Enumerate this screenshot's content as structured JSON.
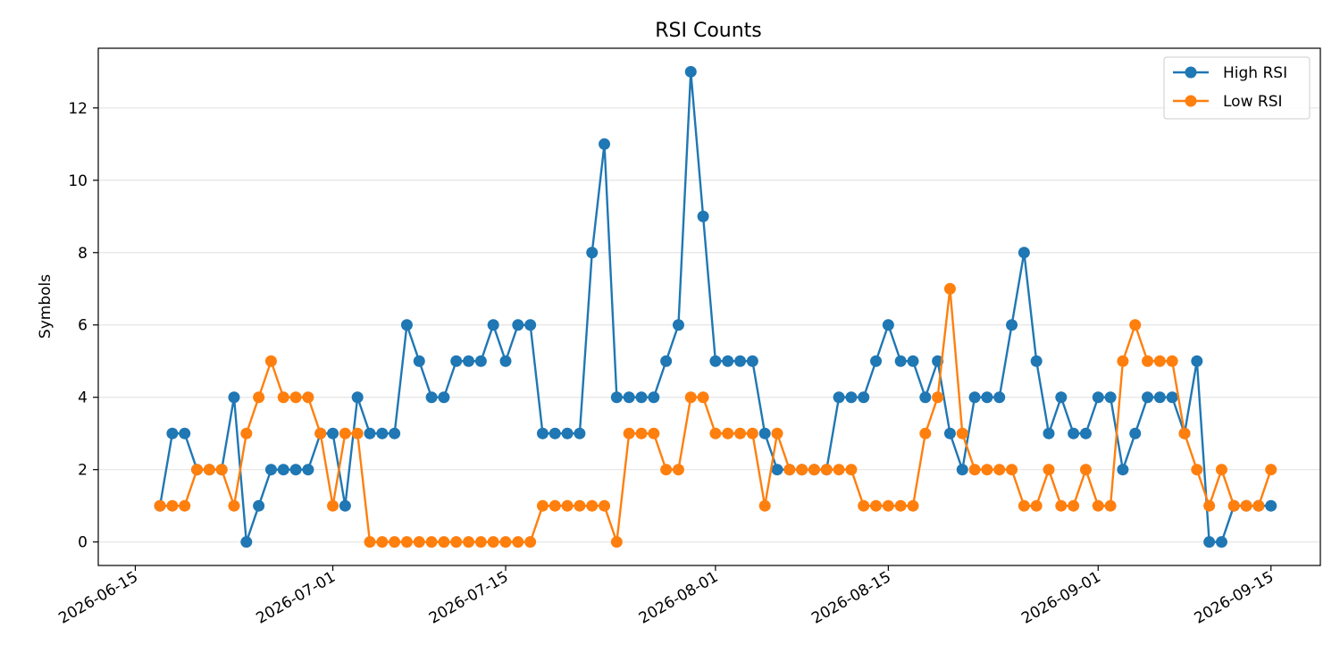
{
  "chart_data": {
    "type": "line",
    "title": "RSI Counts",
    "xlabel": "",
    "ylabel": "Symbols",
    "x_start": "2026-06-17",
    "x_ticks": [
      "2026-06-15",
      "2026-07-01",
      "2026-07-15",
      "2026-08-01",
      "2026-08-15",
      "2026-09-01",
      "2026-09-15"
    ],
    "x_range": [
      "2026-06-12",
      "2026-09-19"
    ],
    "y_ticks": [
      0,
      2,
      4,
      6,
      8,
      10,
      12
    ],
    "ylim": [
      -0.65,
      13.65
    ],
    "grid": "horizontal",
    "legend_position": "top-right",
    "series": [
      {
        "name": "High RSI",
        "color": "#1f77b4",
        "values": [
          1,
          3,
          3,
          2,
          2,
          2,
          4,
          0,
          1,
          2,
          2,
          2,
          2,
          3,
          3,
          1,
          4,
          3,
          3,
          3,
          6,
          5,
          4,
          4,
          5,
          5,
          5,
          6,
          5,
          6,
          6,
          3,
          3,
          3,
          3,
          8,
          11,
          4,
          4,
          4,
          4,
          5,
          6,
          13,
          9,
          5,
          5,
          5,
          5,
          3,
          2,
          2,
          2,
          2,
          2,
          4,
          4,
          4,
          5,
          6,
          5,
          5,
          4,
          5,
          3,
          2,
          4,
          4,
          4,
          6,
          8,
          5,
          3,
          4,
          3,
          3,
          4,
          4,
          2,
          3,
          4,
          4,
          4,
          3,
          5,
          0,
          0,
          1,
          1,
          1,
          1
        ]
      },
      {
        "name": "Low RSI",
        "color": "#ff7f0e",
        "values": [
          1,
          1,
          1,
          2,
          2,
          2,
          1,
          3,
          4,
          5,
          4,
          4,
          4,
          3,
          1,
          3,
          3,
          0,
          0,
          0,
          0,
          0,
          0,
          0,
          0,
          0,
          0,
          0,
          0,
          0,
          0,
          1,
          1,
          1,
          1,
          1,
          1,
          0,
          3,
          3,
          3,
          2,
          2,
          4,
          4,
          3,
          3,
          3,
          3,
          1,
          3,
          2,
          2,
          2,
          2,
          2,
          2,
          1,
          1,
          1,
          1,
          1,
          3,
          4,
          7,
          3,
          2,
          2,
          2,
          2,
          1,
          1,
          2,
          1,
          1,
          2,
          1,
          1,
          5,
          6,
          5,
          5,
          5,
          3,
          2,
          1,
          2,
          1,
          1,
          1,
          2
        ]
      }
    ]
  }
}
